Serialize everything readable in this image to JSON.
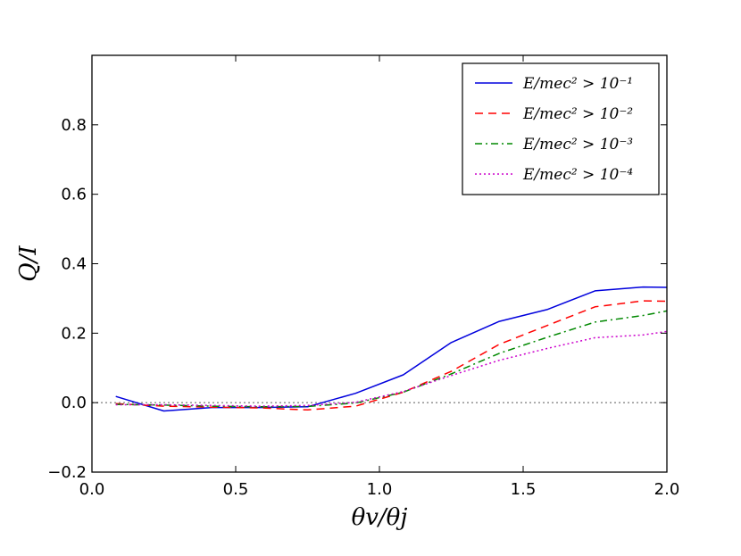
{
  "chart_data": {
    "type": "line",
    "xlabel": "θv/θj",
    "ylabel": "Q/I",
    "xlim": [
      0.0,
      2.0
    ],
    "ylim": [
      -0.2,
      1.0
    ],
    "xticks": [
      0.0,
      0.5,
      1.0,
      1.5,
      2.0
    ],
    "xtick_labels": [
      "0.0",
      "0.5",
      "1.0",
      "1.5",
      "2.0"
    ],
    "yticks": [
      -0.2,
      0.0,
      0.2,
      0.4,
      0.6,
      0.8
    ],
    "ytick_labels": [
      "−0.2",
      "0.0",
      "0.2",
      "0.4",
      "0.6",
      "0.8"
    ],
    "reference_line": {
      "y": 0.0,
      "style": "dotted",
      "color": "#888888"
    },
    "legend": {
      "position": "top-right"
    },
    "series": [
      {
        "name": "E/mec² > 10⁻¹",
        "legend_label": "E/mec² > 10⁻¹",
        "color": "#0000dd",
        "style": "solid",
        "x": [
          0.083,
          0.25,
          0.417,
          0.583,
          0.75,
          0.917,
          1.083,
          1.25,
          1.417,
          1.583,
          1.75,
          1.917,
          2.0
        ],
        "y": [
          0.018,
          -0.024,
          -0.014,
          -0.014,
          -0.012,
          0.027,
          0.08,
          0.173,
          0.234,
          0.268,
          0.322,
          0.333,
          0.332
        ]
      },
      {
        "name": "E/mec² > 10⁻²",
        "legend_label": "E/mec² > 10⁻²",
        "color": "#ff0000",
        "style": "dashed",
        "x": [
          0.083,
          0.25,
          0.417,
          0.583,
          0.75,
          0.917,
          1.083,
          1.25,
          1.417,
          1.583,
          1.75,
          1.917,
          2.0
        ],
        "y": [
          -0.003,
          -0.01,
          -0.013,
          -0.015,
          -0.021,
          -0.01,
          0.03,
          0.09,
          0.168,
          0.222,
          0.276,
          0.293,
          0.292
        ]
      },
      {
        "name": "E/mec² > 10⁻³",
        "legend_label": "E/mec² > 10⁻³",
        "color": "#008800",
        "style": "dashdot",
        "x": [
          0.083,
          0.25,
          0.417,
          0.583,
          0.75,
          0.917,
          1.083,
          1.25,
          1.417,
          1.583,
          1.75,
          1.917,
          2.0
        ],
        "y": [
          -0.005,
          -0.007,
          -0.01,
          -0.012,
          -0.011,
          -0.001,
          0.03,
          0.083,
          0.142,
          0.188,
          0.232,
          0.251,
          0.264
        ]
      },
      {
        "name": "E/mec² > 10⁻⁴",
        "legend_label": "E/mec² > 10⁻⁴",
        "color": "#cc00cc",
        "style": "dotted",
        "x": [
          0.083,
          0.25,
          0.417,
          0.583,
          0.75,
          0.917,
          1.083,
          1.25,
          1.417,
          1.583,
          1.75,
          1.917,
          2.0
        ],
        "y": [
          -0.006,
          -0.006,
          -0.008,
          -0.01,
          -0.008,
          0.001,
          0.032,
          0.078,
          0.122,
          0.156,
          0.187,
          0.195,
          0.205
        ]
      }
    ]
  }
}
